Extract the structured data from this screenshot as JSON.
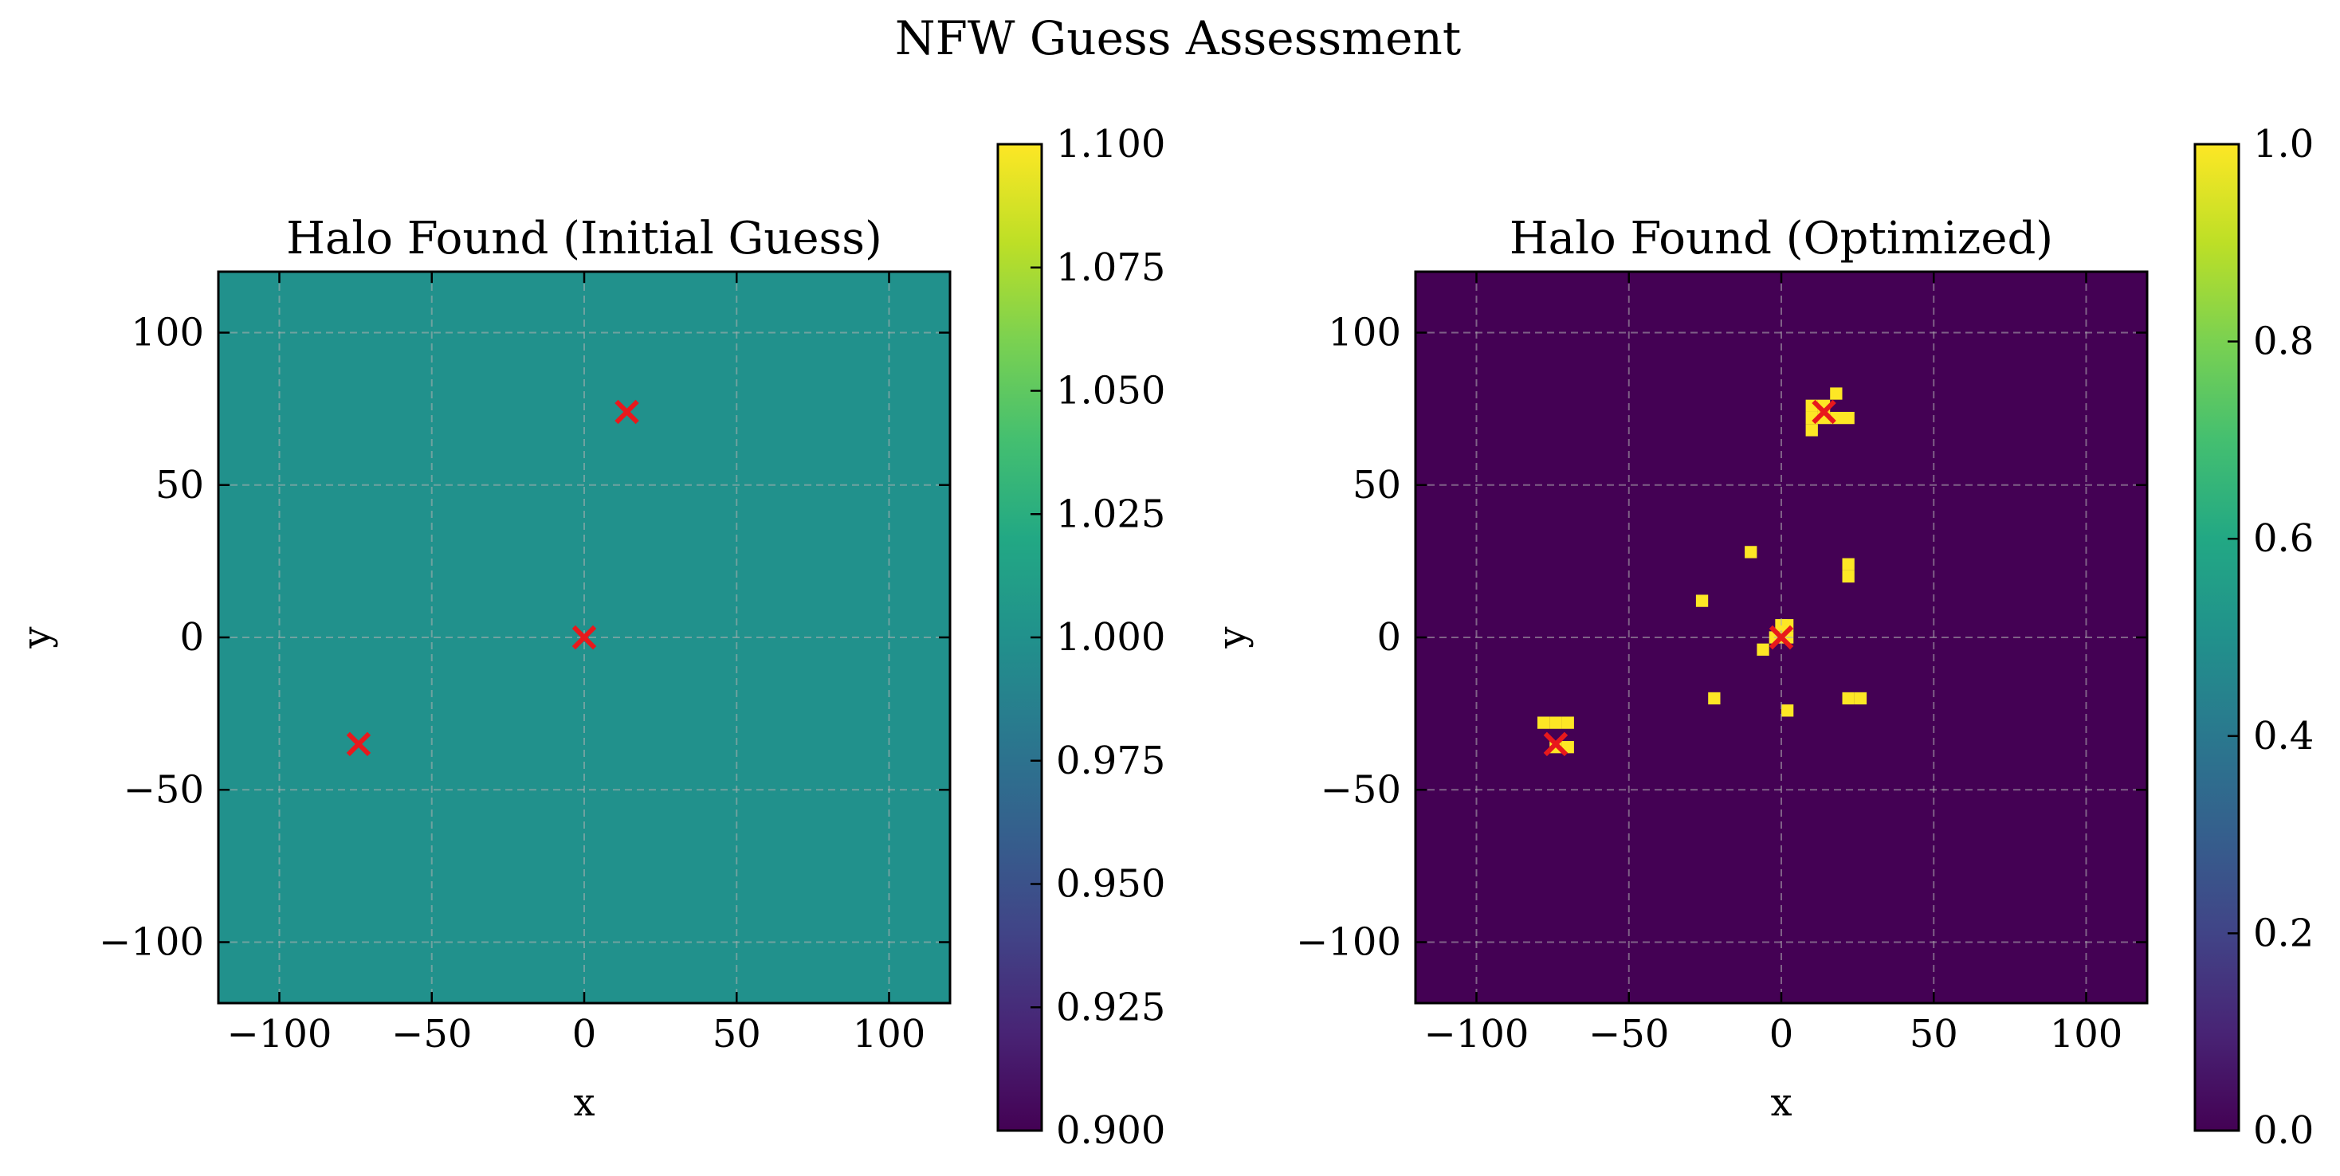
{
  "figure": {
    "title": "NFW Guess Assessment"
  },
  "chart_data": [
    {
      "type": "heatmap",
      "title": "Halo Found (Initial Guess)",
      "xlabel": "x",
      "ylabel": "y",
      "xlim": [
        -120,
        120
      ],
      "ylim": [
        -120,
        120
      ],
      "xticks": [
        -100,
        -50,
        0,
        50,
        100
      ],
      "yticks": [
        -100,
        -50,
        0,
        50,
        100
      ],
      "grid": true,
      "fill_value": 1.0,
      "colorbar": {
        "vmin": 0.9,
        "vmax": 1.1,
        "ticks": [
          0.9,
          0.925,
          0.95,
          0.975,
          1.0,
          1.025,
          1.05,
          1.075,
          1.1
        ],
        "tick_labels": [
          "0.900",
          "0.925",
          "0.950",
          "0.975",
          "1.000",
          "1.025",
          "1.050",
          "1.075",
          "1.100"
        ],
        "colormap": "viridis"
      },
      "markers": [
        {
          "x": 14,
          "y": 74
        },
        {
          "x": 0,
          "y": 0
        },
        {
          "x": -74,
          "y": -35
        }
      ],
      "marker_color": "#e8191c"
    },
    {
      "type": "heatmap",
      "title": "Halo Found (Optimized)",
      "xlabel": "x",
      "ylabel": "y",
      "xlim": [
        -120,
        120
      ],
      "ylim": [
        -120,
        120
      ],
      "xticks": [
        -100,
        -50,
        0,
        50,
        100
      ],
      "yticks": [
        -100,
        -50,
        0,
        50,
        100
      ],
      "grid": true,
      "fill_value": 0.0,
      "cells_value": 1.0,
      "cell_size": 4,
      "cells": [
        [
          10,
          76
        ],
        [
          14,
          76
        ],
        [
          18,
          80
        ],
        [
          10,
          72
        ],
        [
          14,
          72
        ],
        [
          18,
          72
        ],
        [
          22,
          72
        ],
        [
          10,
          68
        ],
        [
          -10,
          28
        ],
        [
          22,
          24
        ],
        [
          22,
          20
        ],
        [
          -26,
          12
        ],
        [
          0,
          4
        ],
        [
          2,
          4
        ],
        [
          -2,
          0
        ],
        [
          2,
          0
        ],
        [
          -6,
          -4
        ],
        [
          -22,
          -20
        ],
        [
          22,
          -20
        ],
        [
          26,
          -20
        ],
        [
          2,
          -24
        ],
        [
          -78,
          -28
        ],
        [
          -74,
          -28
        ],
        [
          -70,
          -28
        ],
        [
          -74,
          -36
        ],
        [
          -70,
          -36
        ]
      ],
      "colorbar": {
        "vmin": 0.0,
        "vmax": 1.0,
        "ticks": [
          0.0,
          0.2,
          0.4,
          0.6,
          0.8,
          1.0
        ],
        "tick_labels": [
          "0.0",
          "0.2",
          "0.4",
          "0.6",
          "0.8",
          "1.0"
        ],
        "colormap": "viridis"
      },
      "markers": [
        {
          "x": 14,
          "y": 74
        },
        {
          "x": 0,
          "y": 0
        },
        {
          "x": -74,
          "y": -35
        }
      ],
      "marker_color": "#e8191c"
    }
  ]
}
